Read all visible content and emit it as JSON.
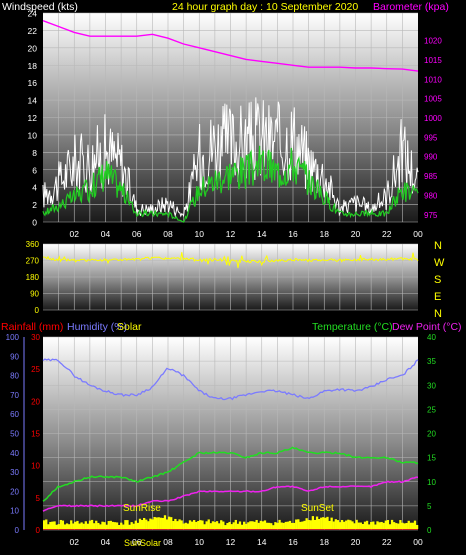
{
  "header": {
    "windspeed_label": "Windspeed (kts)",
    "title": "24 hour graph day : 10 September 2020",
    "barometer_label": "Barometer (kpa)"
  },
  "colors": {
    "background": "#000000",
    "wind_max": "#ffffff",
    "wind_avg": "#22cc22",
    "barometer": "#ff00ff",
    "direction": "#ffff00",
    "rainfall": "#ff0000",
    "humidity": "#7b7bff",
    "temperature": "#22dd22",
    "dew_point": "#ee22ee",
    "solar": "#ffff00",
    "axis_text": "#ffffff"
  },
  "chart_data": [
    {
      "id": "wind",
      "type": "line",
      "x_ticks": [
        "02",
        "04",
        "06",
        "08",
        "10",
        "12",
        "14",
        "16",
        "18",
        "20",
        "22",
        "00"
      ],
      "y_left_ticks": [
        0,
        2,
        4,
        6,
        8,
        10,
        12,
        14,
        16,
        18,
        20,
        22,
        24
      ],
      "y_left_range": [
        0,
        24
      ],
      "y_right_ticks": [
        975,
        980,
        985,
        990,
        995,
        1000,
        1005,
        1010,
        1015,
        1020
      ],
      "y_right_range": [
        973,
        1027
      ],
      "grid": true,
      "hours": [
        0,
        1,
        2,
        3,
        4,
        5,
        6,
        7,
        8,
        9,
        10,
        11,
        12,
        13,
        14,
        15,
        16,
        17,
        18,
        19,
        20,
        21,
        22,
        23,
        24
      ],
      "series": [
        {
          "key": "gust",
          "values": [
            4,
            6,
            9,
            9,
            11,
            9,
            2,
            2,
            3,
            1,
            10,
            12,
            12,
            12,
            13,
            12,
            13,
            9,
            7,
            2,
            3,
            2,
            4,
            11,
            6
          ]
        },
        {
          "key": "average",
          "values": [
            1,
            2,
            3,
            4,
            6,
            4,
            1,
            1,
            1,
            0,
            4,
            5,
            6,
            6,
            7,
            6,
            7,
            5,
            3,
            1,
            1,
            1,
            1,
            4,
            3
          ]
        },
        {
          "key": "barometer",
          "values": [
            1025,
            1023.5,
            1022,
            1021,
            1021,
            1021,
            1021,
            1021.5,
            1020.5,
            1019,
            1018,
            1017,
            1016,
            1015,
            1014.5,
            1014,
            1013.5,
            1013,
            1013,
            1013,
            1012.8,
            1012.8,
            1012.6,
            1012.5,
            1012
          ]
        }
      ]
    },
    {
      "id": "direction",
      "type": "line",
      "y_ticks": [
        0,
        90,
        180,
        270,
        360
      ],
      "y_range": [
        0,
        360
      ],
      "compass_labels": [
        "N",
        "W",
        "S",
        "E",
        "N"
      ],
      "grid": true,
      "hours": [
        0,
        1,
        2,
        3,
        4,
        5,
        6,
        7,
        8,
        9,
        10,
        11,
        12,
        13,
        14,
        15,
        16,
        17,
        18,
        19,
        20,
        21,
        22,
        23,
        24
      ],
      "values": [
        290,
        270,
        275,
        270,
        275,
        275,
        275,
        285,
        280,
        280,
        270,
        275,
        270,
        265,
        265,
        270,
        275,
        270,
        275,
        270,
        275,
        275,
        275,
        280,
        275
      ]
    },
    {
      "id": "thermo",
      "type": "line",
      "labels": {
        "rainfall": "Rainfall (mm)",
        "humidity": "Humidity (%)",
        "solar": "Solar",
        "temperature": "Temperature (°C)",
        "dew_point": "Dew Point (°C)"
      },
      "markers": {
        "sunrise": "SunRise",
        "sunset": "SunSet"
      },
      "bottom_legend": "SunSolar",
      "x_ticks": [
        "02",
        "04",
        "06",
        "08",
        "10",
        "12",
        "14",
        "16",
        "18",
        "20",
        "22",
        "00"
      ],
      "humidity_ticks": [
        0,
        10,
        20,
        30,
        40,
        50,
        60,
        70,
        80,
        90,
        100
      ],
      "humidity_range": [
        0,
        100
      ],
      "rain_ticks": [
        0,
        5,
        10,
        15,
        20,
        25,
        30
      ],
      "rain_range": [
        0,
        30
      ],
      "temp_ticks": [
        0,
        5,
        10,
        15,
        20,
        25,
        30,
        35,
        40
      ],
      "temp_range": [
        0,
        40
      ],
      "grid": true,
      "hours": [
        0,
        1,
        2,
        3,
        4,
        5,
        6,
        7,
        8,
        9,
        10,
        11,
        12,
        13,
        14,
        15,
        16,
        17,
        18,
        19,
        20,
        21,
        22,
        23,
        24
      ],
      "series": [
        {
          "key": "humidity",
          "values": [
            88,
            88,
            80,
            75,
            72,
            70,
            70,
            74,
            84,
            80,
            72,
            68,
            68,
            70,
            72,
            72,
            70,
            68,
            72,
            73,
            72,
            74,
            78,
            80,
            88
          ]
        },
        {
          "key": "temperature",
          "values": [
            6,
            9,
            10,
            11,
            11,
            11,
            10,
            11,
            12,
            14,
            16,
            16,
            16,
            15,
            16,
            16,
            17,
            16,
            16,
            16,
            15,
            15,
            15,
            14,
            14
          ]
        },
        {
          "key": "dew_point",
          "values": [
            4,
            5,
            5,
            5,
            5,
            5,
            5,
            6,
            6,
            7,
            8,
            8,
            8,
            8,
            8,
            9,
            9,
            8,
            9,
            9,
            9,
            9,
            10,
            10,
            11
          ]
        },
        {
          "key": "solar",
          "values": [
            1,
            1,
            1,
            1,
            1,
            1,
            1,
            2,
            2,
            1,
            1,
            1,
            1,
            1,
            1,
            1,
            1,
            2,
            2,
            1,
            1,
            1,
            1,
            1,
            1
          ]
        }
      ]
    }
  ]
}
